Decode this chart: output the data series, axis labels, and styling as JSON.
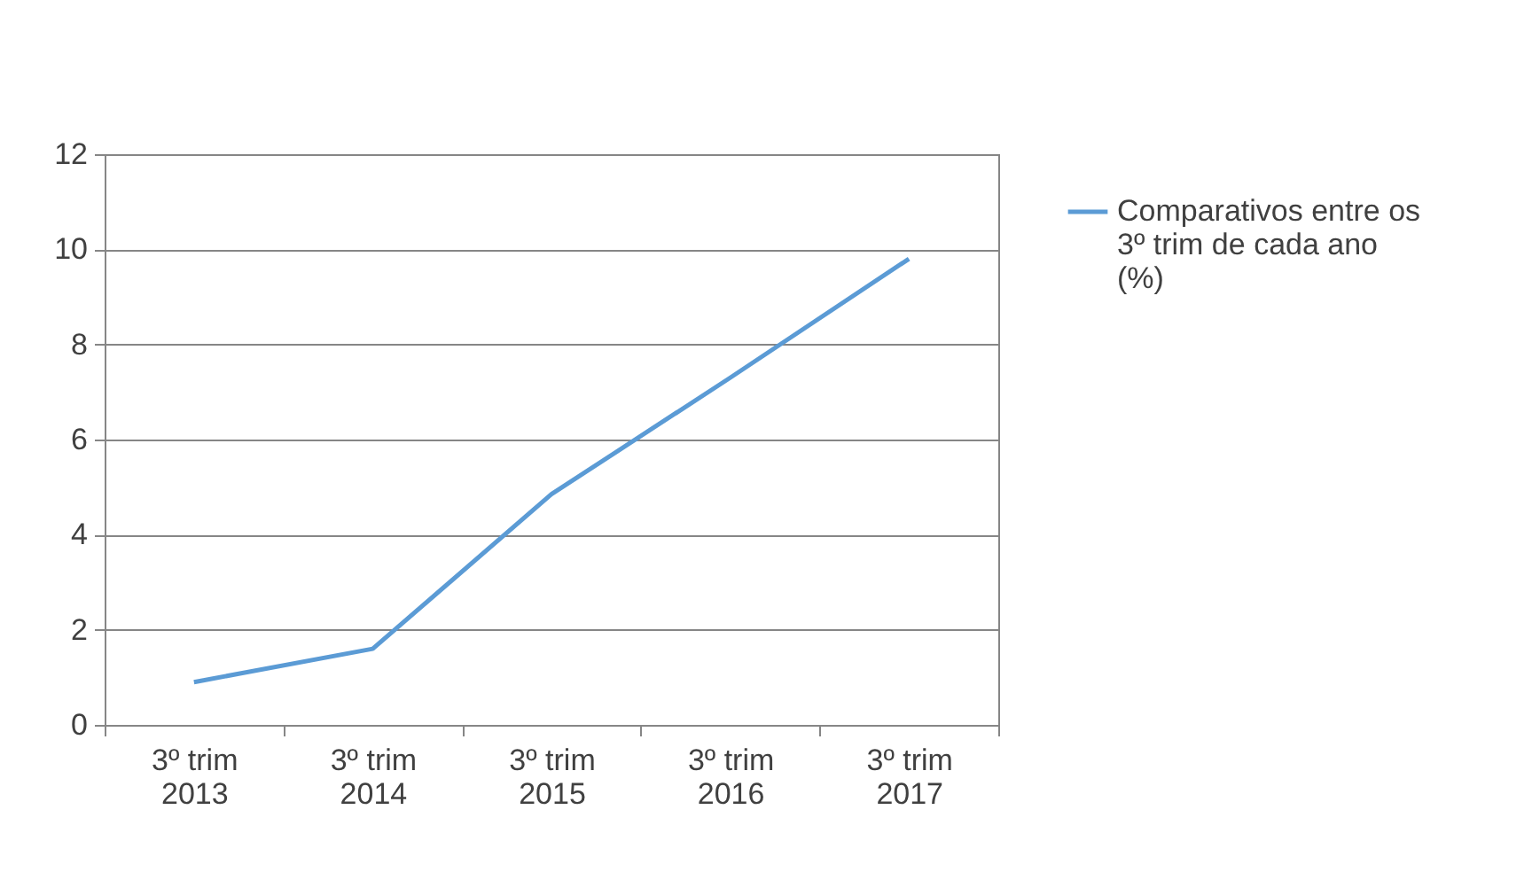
{
  "chart_data": {
    "type": "line",
    "categories": [
      "3º trim 2013",
      "3º trim 2014",
      "3º trim 2015",
      "3º trim 2016",
      "3º trim 2017"
    ],
    "series": [
      {
        "name": "Comparativos entre os 3º trim de cada ano (%)",
        "color": "#5b9bd5",
        "values": [
          0.9,
          1.6,
          4.85,
          7.3,
          9.8
        ]
      }
    ],
    "ylim": [
      0,
      12
    ],
    "yticks": [
      0,
      2,
      4,
      6,
      8,
      10,
      12
    ],
    "grid": "y",
    "legend": "right",
    "line_style": "solid",
    "marker": "none"
  }
}
